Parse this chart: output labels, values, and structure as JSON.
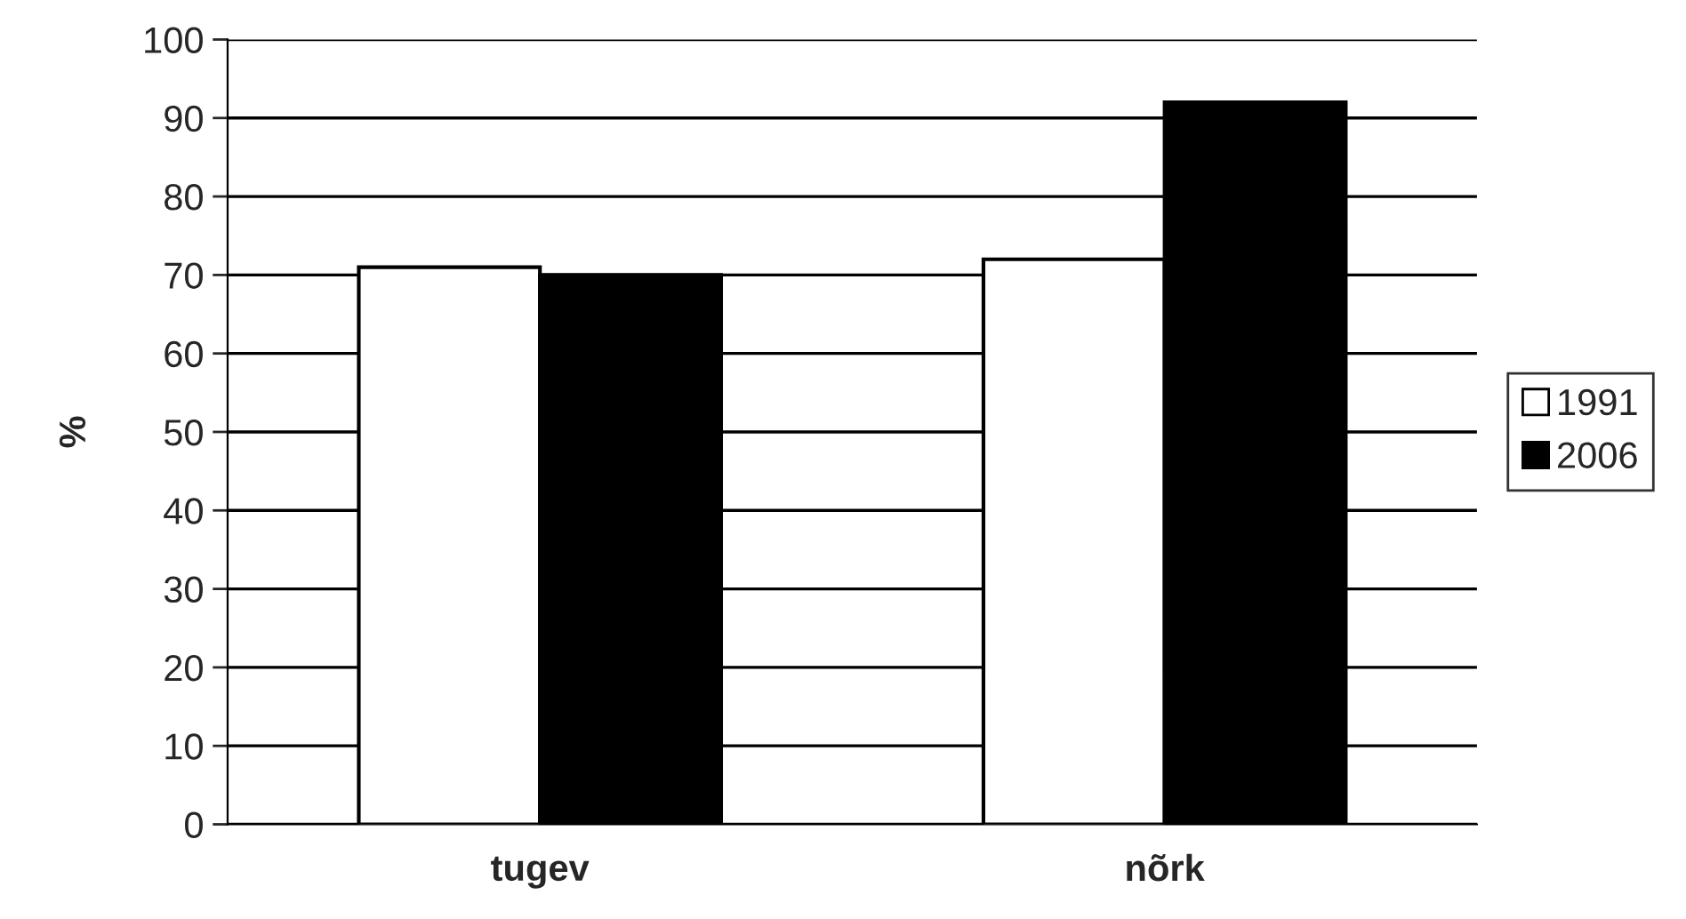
{
  "chart_data": {
    "type": "bar",
    "ylabel": "%",
    "categories": [
      "tugev",
      "nõrk"
    ],
    "series": [
      {
        "name": "1991",
        "color": "#ffffff",
        "values": [
          71,
          72
        ]
      },
      {
        "name": "2006",
        "color": "#000000",
        "values": [
          70,
          92
        ]
      }
    ],
    "ylim": [
      0,
      100
    ],
    "yticks": [
      0,
      10,
      20,
      30,
      40,
      50,
      60,
      70,
      80,
      90,
      100
    ],
    "grid": "y",
    "legend": "right"
  }
}
